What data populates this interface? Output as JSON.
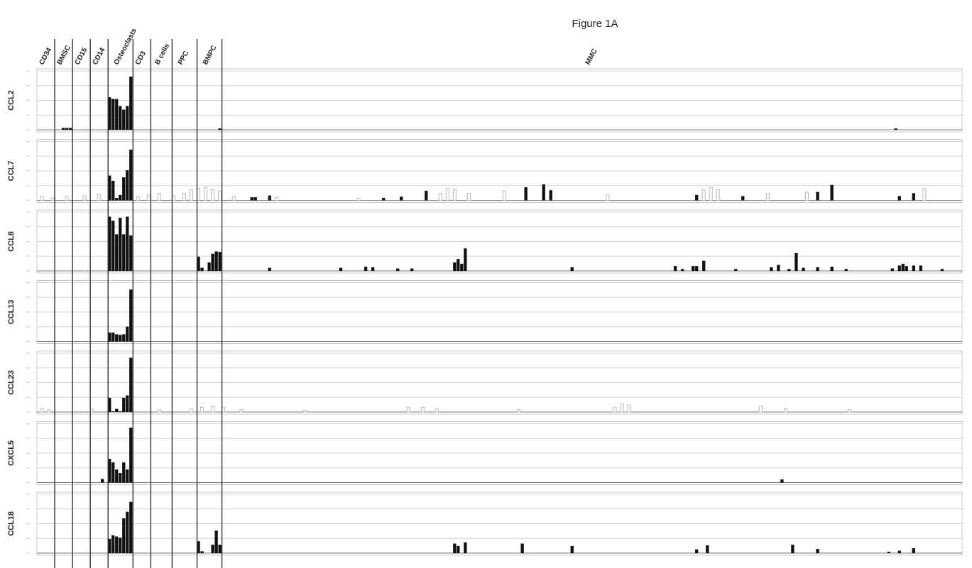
{
  "title": "Figure 1A",
  "groups": [
    {
      "value": 5,
      "label": "CD34"
    },
    {
      "value": 10,
      "label": "BMSC"
    },
    {
      "value": 15,
      "label": "CD15"
    },
    {
      "value": 20,
      "label": "CD14"
    },
    {
      "value": 27,
      "label": "Osteoclasts"
    },
    {
      "value": 32,
      "label": "CD3"
    },
    {
      "value": 38,
      "label": "B cells"
    },
    {
      "value": 45,
      "label": "PPC"
    },
    {
      "value": 52,
      "label": "BMPC"
    },
    {
      "value": 260,
      "label": "MMC"
    }
  ],
  "chart_data": [
    {
      "type": "bar",
      "ylabel": "CCL2",
      "xlim": [
        0,
        260
      ],
      "ylim": [
        0,
        100
      ],
      "yticks": [
        0,
        25,
        50,
        75,
        100
      ],
      "grid": true,
      "series": [
        {
          "color": "#111111",
          "x": [
            7,
            8,
            9,
            20,
            21,
            22,
            23,
            24,
            25,
            26,
            51,
            241
          ],
          "values": [
            3,
            3,
            3,
            55,
            52,
            52,
            40,
            34,
            40,
            90,
            2,
            2
          ]
        }
      ]
    },
    {
      "type": "bar",
      "ylabel": "CCL7",
      "xlim": [
        0,
        260
      ],
      "ylim": [
        0,
        100
      ],
      "yticks": [
        0,
        25,
        50,
        75,
        100
      ],
      "grid": true,
      "series": [
        {
          "color": "#b8b8b8",
          "x": [
            1,
            4,
            8,
            13,
            17,
            28,
            31,
            34,
            38,
            41,
            43,
            45,
            47,
            49,
            51,
            55,
            67,
            90,
            113,
            115,
            117,
            121,
            131,
            160,
            187,
            189,
            191,
            205,
            216,
            249
          ],
          "values": [
            6,
            4,
            6,
            8,
            10,
            6,
            10,
            12,
            8,
            12,
            18,
            20,
            22,
            18,
            16,
            6,
            5,
            3,
            12,
            20,
            18,
            12,
            16,
            10,
            18,
            22,
            18,
            12,
            14,
            20
          ]
        },
        {
          "color": "#111111",
          "x": [
            20,
            21,
            22,
            23,
            24,
            25,
            26,
            60,
            61,
            65,
            97,
            102,
            109,
            137,
            142,
            144,
            185,
            198,
            219,
            223,
            242,
            246
          ],
          "values": [
            42,
            33,
            4,
            9,
            39,
            51,
            86,
            5,
            5,
            8,
            4,
            6,
            16,
            22,
            27,
            17,
            9,
            7,
            14,
            26,
            7,
            12
          ]
        }
      ]
    },
    {
      "type": "bar",
      "ylabel": "CCL8",
      "xlim": [
        0,
        260
      ],
      "ylim": [
        0,
        100
      ],
      "yticks": [
        0,
        25,
        50,
        75,
        100
      ],
      "grid": true,
      "series": [
        {
          "color": "#111111",
          "x": [
            20,
            21,
            22,
            23,
            24,
            25,
            26,
            45,
            46,
            48,
            49,
            50,
            51,
            65,
            85,
            92,
            94,
            101,
            105,
            117,
            118,
            119,
            120,
            150,
            179,
            181,
            184,
            185,
            187,
            196,
            206,
            208,
            211,
            213,
            215,
            219,
            223,
            227,
            240,
            242,
            243,
            244,
            246,
            248,
            254
          ],
          "values": [
            92,
            85,
            62,
            90,
            62,
            92,
            60,
            24,
            5,
            14,
            29,
            33,
            32,
            5,
            5,
            7,
            6,
            4,
            4,
            14,
            20,
            12,
            38,
            6,
            8,
            3,
            8,
            8,
            17,
            3,
            6,
            10,
            3,
            30,
            5,
            6,
            7,
            3,
            4,
            9,
            12,
            8,
            9,
            9,
            3
          ]
        }
      ]
    },
    {
      "type": "bar",
      "ylabel": "CCL13",
      "xlim": [
        0,
        260
      ],
      "ylim": [
        0,
        100
      ],
      "yticks": [
        0,
        25,
        50,
        75,
        100
      ],
      "grid": true,
      "series": [
        {
          "color": "#111111",
          "x": [
            20,
            21,
            22,
            23,
            24,
            25,
            26
          ],
          "values": [
            15,
            15,
            12,
            11,
            12,
            25,
            88
          ]
        }
      ]
    },
    {
      "type": "bar",
      "ylabel": "CCL23",
      "xlim": [
        0,
        260
      ],
      "ylim": [
        0,
        100
      ],
      "yticks": [
        0,
        25,
        50,
        75,
        100
      ],
      "grid": true,
      "series": [
        {
          "color": "#b8b8b8",
          "x": [
            1,
            3,
            15,
            34,
            43,
            46,
            49,
            52,
            57,
            75,
            104,
            108,
            112,
            135,
            162,
            164,
            166,
            203,
            210,
            228
          ],
          "values": [
            6,
            4,
            5,
            4,
            5,
            8,
            10,
            8,
            4,
            3,
            8,
            8,
            6,
            4,
            8,
            14,
            12,
            10,
            6,
            4
          ]
        },
        {
          "color": "#111111",
          "x": [
            20,
            21,
            22,
            23,
            24,
            25,
            26
          ],
          "values": [
            24,
            1,
            5,
            1,
            24,
            28,
            92
          ]
        }
      ]
    },
    {
      "type": "bar",
      "ylabel": "CXCL5",
      "xlim": [
        0,
        260
      ],
      "ylim": [
        0,
        100
      ],
      "yticks": [
        0,
        25,
        50,
        75,
        100
      ],
      "grid": true,
      "series": [
        {
          "color": "#111111",
          "x": [
            18,
            20,
            21,
            22,
            23,
            24,
            25,
            26,
            209
          ],
          "values": [
            6,
            40,
            34,
            22,
            16,
            34,
            22,
            93,
            5
          ]
        }
      ]
    },
    {
      "type": "bar",
      "ylabel": "CCL18",
      "xlim": [
        0,
        260
      ],
      "ylim": [
        0,
        100
      ],
      "yticks": [
        0,
        25,
        50,
        75,
        100
      ],
      "grid": true,
      "series": [
        {
          "color": "#111111",
          "x": [
            20,
            21,
            22,
            23,
            24,
            25,
            26,
            45,
            46,
            49,
            50,
            51,
            117,
            118,
            120,
            136,
            150,
            185,
            188,
            212,
            219,
            239,
            242,
            246
          ],
          "values": [
            24,
            30,
            28,
            26,
            59,
            70,
            87,
            20,
            3,
            14,
            38,
            14,
            16,
            12,
            18,
            16,
            12,
            6,
            13,
            14,
            7,
            2,
            4,
            8
          ]
        }
      ]
    }
  ]
}
